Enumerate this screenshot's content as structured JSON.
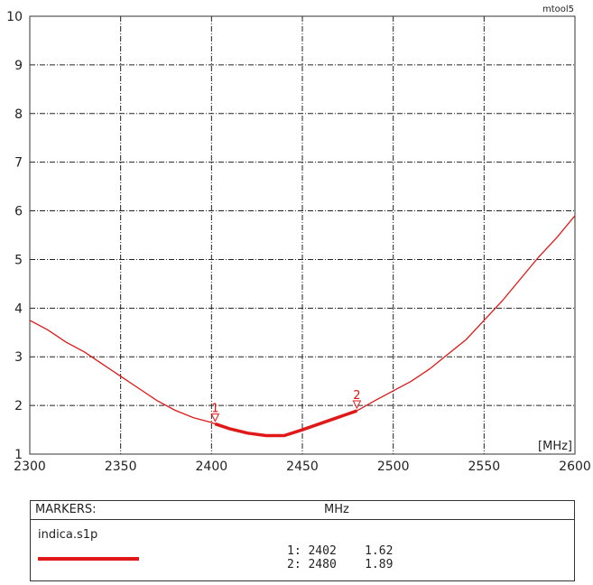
{
  "chart_data": {
    "type": "line",
    "tool_label": "mtool5",
    "x_unit_label": "[MHz]",
    "xlim": [
      2300,
      2600
    ],
    "ylim": [
      1,
      10
    ],
    "x_ticks": [
      2300,
      2350,
      2400,
      2450,
      2500,
      2550,
      2600
    ],
    "y_ticks": [
      1,
      2,
      3,
      4,
      5,
      6,
      7,
      8,
      9,
      10
    ],
    "grid": true,
    "line_color": "#e01818",
    "series": [
      {
        "x": [
          2300,
          2310,
          2320,
          2330,
          2340,
          2350,
          2360,
          2370,
          2380,
          2390,
          2400,
          2402,
          2410,
          2420,
          2430,
          2440,
          2450,
          2460,
          2470,
          2480,
          2490,
          2500,
          2510,
          2520,
          2530,
          2540,
          2550,
          2560,
          2570,
          2580,
          2590,
          2600
        ],
        "y": [
          3.75,
          3.55,
          3.3,
          3.1,
          2.85,
          2.6,
          2.35,
          2.1,
          1.9,
          1.75,
          1.65,
          1.62,
          1.52,
          1.43,
          1.38,
          1.38,
          1.5,
          1.63,
          1.76,
          1.89,
          2.1,
          2.3,
          2.5,
          2.75,
          3.05,
          3.35,
          3.75,
          4.15,
          4.6,
          5.05,
          5.45,
          5.9
        ]
      }
    ],
    "highlight_range": [
      2402,
      2480
    ],
    "markers": [
      {
        "id": "1",
        "freq": 2402,
        "value": 1.62
      },
      {
        "id": "2",
        "freq": 2480,
        "value": 1.89
      }
    ]
  },
  "marker_panel": {
    "title": "MARKERS:",
    "unit": "MHz",
    "file_name": "indica.s1p",
    "rows": [
      "1: 2402    1.62",
      "2: 2480    1.89"
    ]
  }
}
